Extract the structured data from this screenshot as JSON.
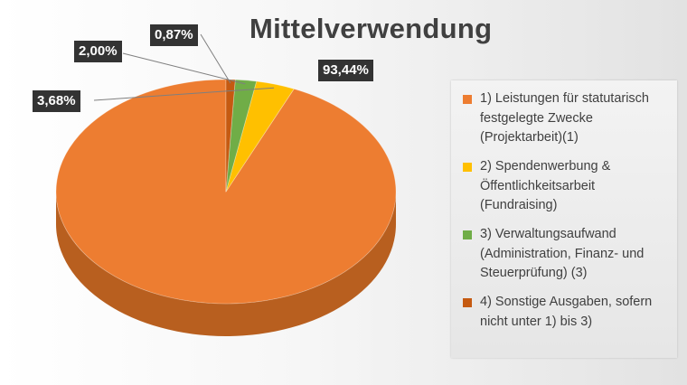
{
  "chart_data": {
    "type": "pie",
    "title": "Mittelverwendung",
    "style": "3d",
    "legend_position": "right",
    "slices": [
      {
        "label": "1) Leistungen für statutarisch\nfestgelegte Zwecke\n(Projektarbeit)(1)",
        "value": 93.44,
        "value_label": "93,44%",
        "color": "#ED7D31",
        "side_color": "#B85F1F"
      },
      {
        "label": "2) Spendenwerbung &\nÖffentlichkeitsarbeit\n(Fundraising)",
        "value": 3.68,
        "value_label": "3,68%",
        "color": "#FFC000",
        "side_color": "#C79500"
      },
      {
        "label": "3) Verwaltungsaufwand\n(Administration, Finanz- und\nSteuerprüfung) (3)",
        "value": 2.0,
        "value_label": "2,00%",
        "color": "#70AD47",
        "side_color": "#4F7F31"
      },
      {
        "label": "4) Sonstige Ausgaben, sofern\nnicht unter 1) bis 3)",
        "value": 0.87,
        "value_label": "0,87%",
        "color": "#C55A11",
        "side_color": "#8E400C"
      }
    ]
  }
}
